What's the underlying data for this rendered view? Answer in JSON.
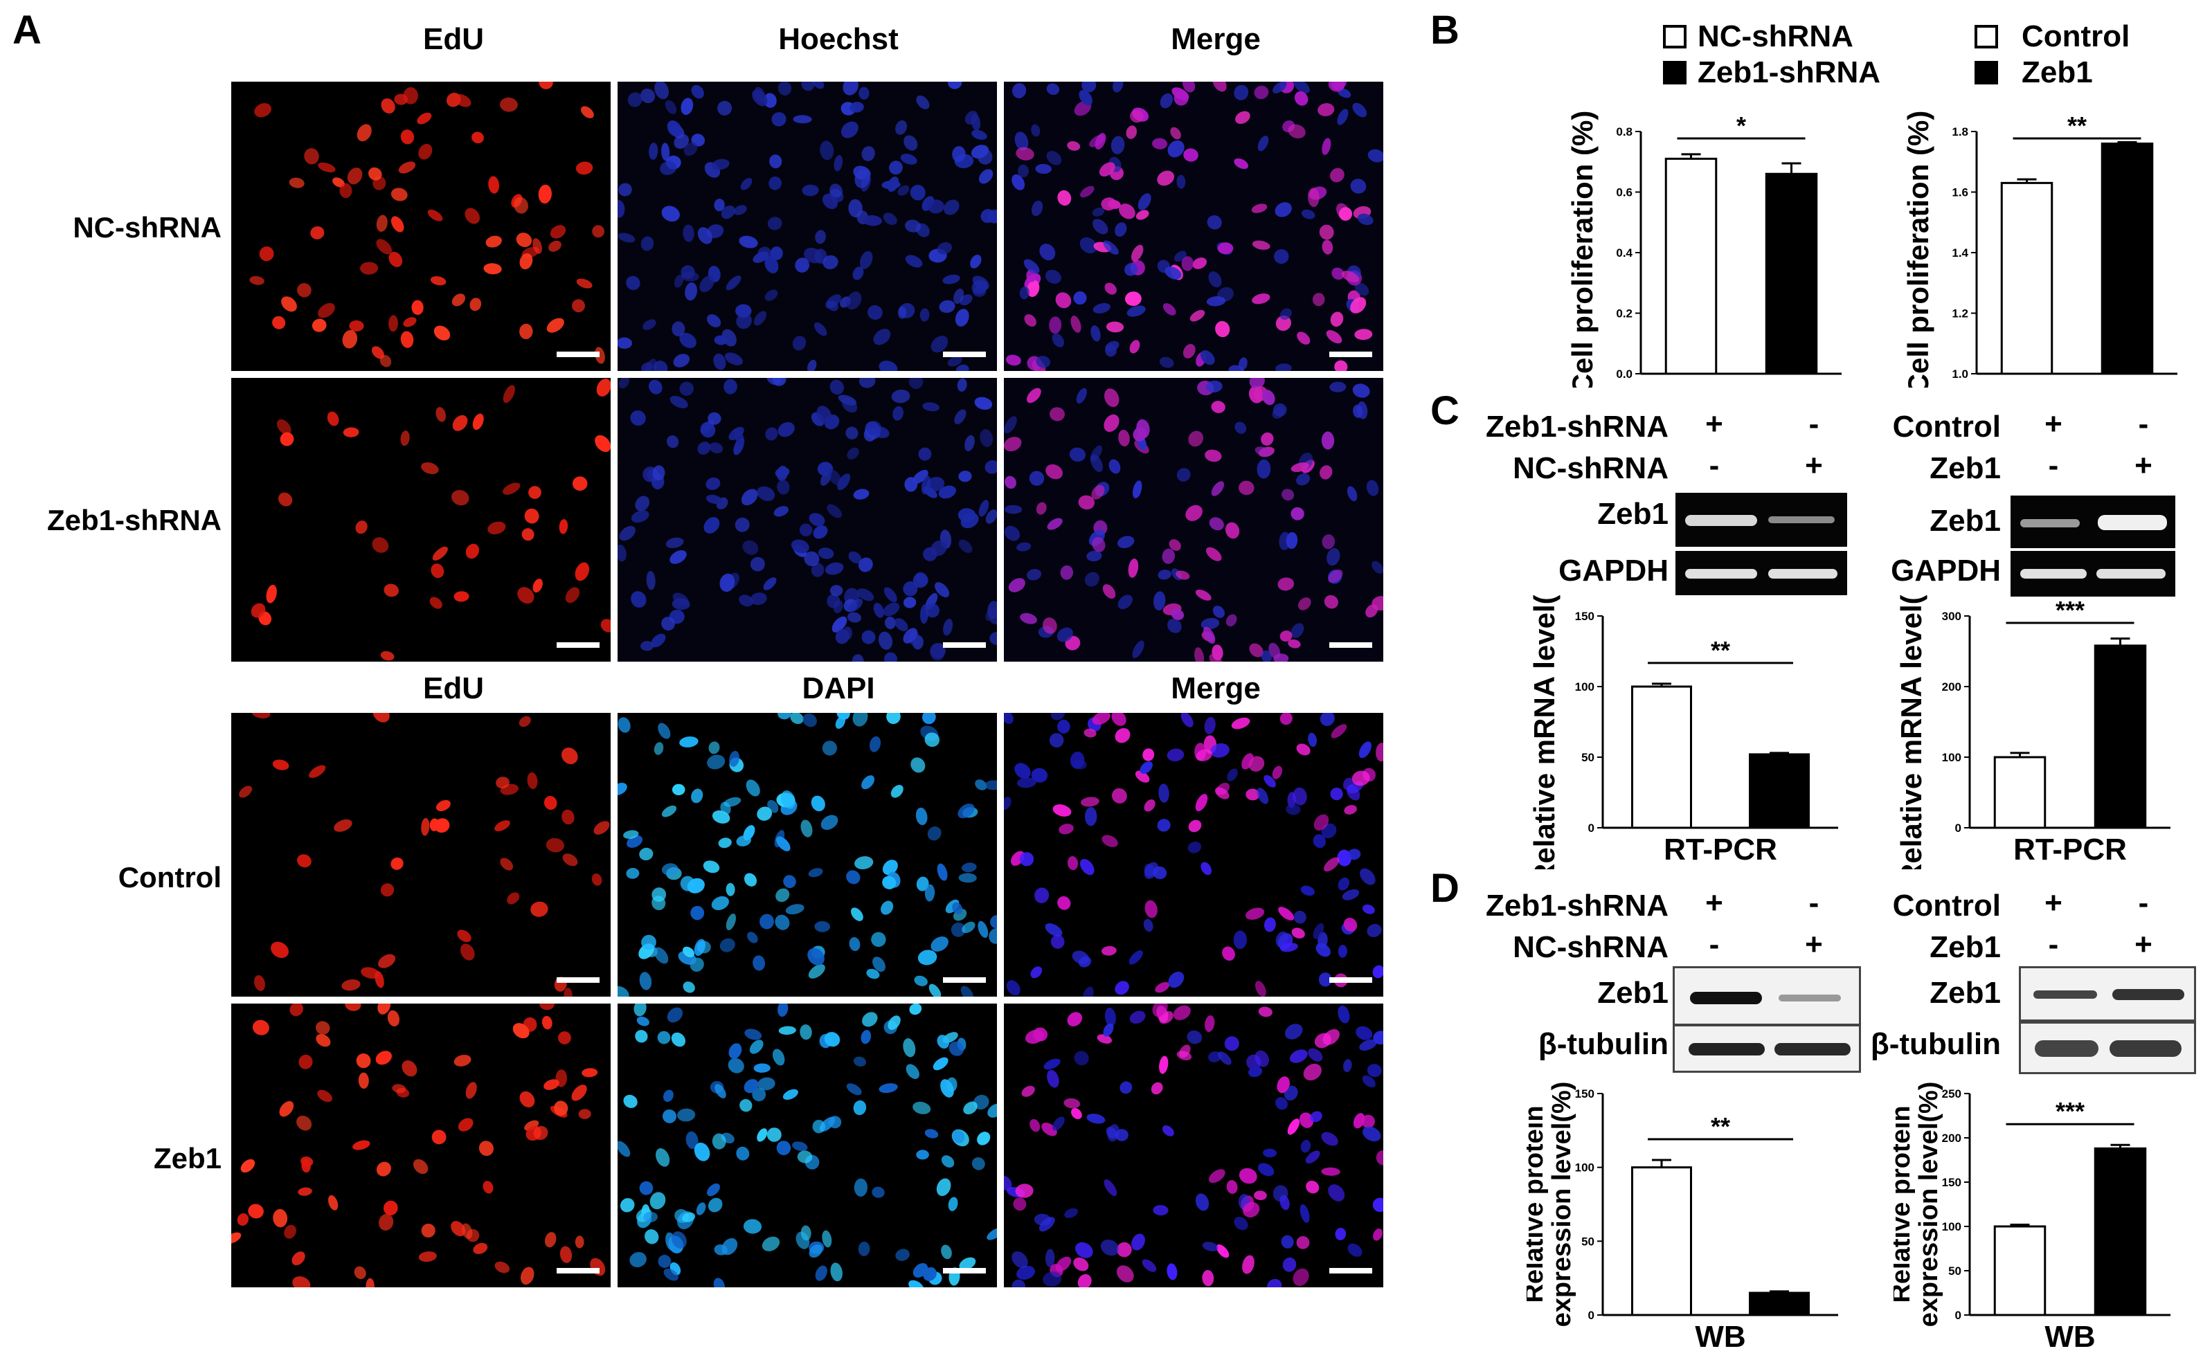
{
  "panelA": {
    "label": "A",
    "top_columns": [
      "EdU",
      "Hoechst",
      "Merge"
    ],
    "bottom_columns": [
      "EdU",
      "DAPI",
      "Merge"
    ],
    "rows": [
      "NC-shRNA",
      "Zeb1-shRNA",
      "Control",
      "Zeb1"
    ]
  },
  "panelB": {
    "label": "B",
    "legend_left": [
      "NC-shRNA",
      "Zeb1-shRNA"
    ],
    "legend_right": [
      "Control",
      "Zeb1"
    ]
  },
  "panelC": {
    "label": "C",
    "left_conditions": [
      {
        "name": "Zeb1-shRNA",
        "signs": [
          "+",
          "-"
        ]
      },
      {
        "name": "NC-shRNA",
        "signs": [
          "-",
          "+"
        ]
      }
    ],
    "right_conditions": [
      {
        "name": "Control",
        "signs": [
          "+",
          "-"
        ]
      },
      {
        "name": "Zeb1",
        "signs": [
          "-",
          "+"
        ]
      }
    ],
    "gel_labels": [
      "Zeb1",
      "GAPDH"
    ]
  },
  "panelD": {
    "label": "D",
    "left_conditions": [
      {
        "name": "Zeb1-shRNA",
        "signs": [
          "+",
          "-"
        ]
      },
      {
        "name": "NC-shRNA",
        "signs": [
          "-",
          "+"
        ]
      }
    ],
    "right_conditions": [
      {
        "name": "Control",
        "signs": [
          "+",
          "-"
        ]
      },
      {
        "name": "Zeb1",
        "signs": [
          "-",
          "+"
        ]
      }
    ],
    "blot_labels": [
      "Zeb1",
      "β-tubulin"
    ]
  },
  "chart_data": [
    {
      "id": "B-left",
      "type": "bar",
      "categories": [
        "NC-shRNA",
        "Zeb1-shRNA"
      ],
      "values": [
        0.71,
        0.66
      ],
      "errors": [
        0.015,
        0.035
      ],
      "fills": [
        "#ffffff",
        "#000000"
      ],
      "ylabel": "Cell proliferation (%)",
      "ylim": [
        0,
        0.8
      ],
      "yticks": [
        "0.0",
        "0.2",
        "0.4",
        "0.6",
        "0.8"
      ],
      "significance": "*",
      "xlabel": ""
    },
    {
      "id": "B-right",
      "type": "bar",
      "categories": [
        "Control",
        "Zeb1"
      ],
      "values": [
        1.63,
        1.76
      ],
      "errors": [
        0.012,
        0.005
      ],
      "fills": [
        "#ffffff",
        "#000000"
      ],
      "ylabel": "Cell proliferation (%)",
      "ylim": [
        1.0,
        1.8
      ],
      "yticks": [
        "1.0",
        "1.2",
        "1.4",
        "1.6",
        "1.8"
      ],
      "significance": "**",
      "xlabel": ""
    },
    {
      "id": "C-left",
      "type": "bar",
      "categories": [
        "Zeb1-shRNA",
        "NC-shRNA"
      ],
      "values": [
        100,
        52
      ],
      "errors": [
        2,
        1
      ],
      "fills": [
        "#ffffff",
        "#000000"
      ],
      "ylabel": "Relative mRNA level(%)",
      "ylim": [
        0,
        150
      ],
      "yticks": [
        "0",
        "50",
        "100",
        "150"
      ],
      "significance": "**",
      "xlabel": "RT-PCR"
    },
    {
      "id": "C-right",
      "type": "bar",
      "categories": [
        "Control",
        "Zeb1"
      ],
      "values": [
        100,
        258
      ],
      "errors": [
        6,
        10
      ],
      "fills": [
        "#ffffff",
        "#000000"
      ],
      "ylabel": "Relative mRNA level(%)",
      "ylim": [
        0,
        300
      ],
      "yticks": [
        "0",
        "100",
        "200",
        "300"
      ],
      "significance": "***",
      "xlabel": "RT-PCR"
    },
    {
      "id": "D-left",
      "type": "bar",
      "categories": [
        "Zeb1-shRNA",
        "NC-shRNA"
      ],
      "values": [
        100,
        15
      ],
      "errors": [
        5,
        1
      ],
      "fills": [
        "#ffffff",
        "#000000"
      ],
      "ylabel": "Relative protein expression level(%)",
      "ylim": [
        0,
        150
      ],
      "yticks": [
        "0",
        "50",
        "100",
        "150"
      ],
      "significance": "**",
      "xlabel": "WB"
    },
    {
      "id": "D-right",
      "type": "bar",
      "categories": [
        "Control",
        "Zeb1"
      ],
      "values": [
        100,
        188
      ],
      "errors": [
        2,
        4
      ],
      "fills": [
        "#ffffff",
        "#000000"
      ],
      "ylabel": "Relative protein expression level(%)",
      "ylim": [
        0,
        250
      ],
      "yticks": [
        "0",
        "50",
        "100",
        "150",
        "200",
        "250"
      ],
      "significance": "***",
      "xlabel": "WB"
    }
  ]
}
